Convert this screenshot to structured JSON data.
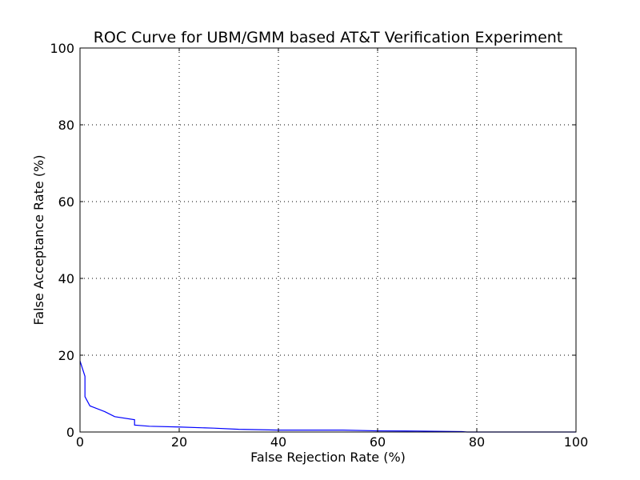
{
  "chart_data": {
    "type": "line",
    "title": "ROC Curve for UBM/GMM based AT&T Verification Experiment",
    "xlabel": "False Rejection Rate (%)",
    "ylabel": "False Acceptance Rate (%)",
    "xlim": [
      0,
      100
    ],
    "ylim": [
      0,
      100
    ],
    "xticks": [
      "0",
      "20",
      "40",
      "60",
      "80",
      "100"
    ],
    "yticks": [
      "0",
      "20",
      "40",
      "60",
      "80",
      "100"
    ],
    "grid": true,
    "series": [
      {
        "color": "#0000ff",
        "x": [
          0,
          1,
          1,
          2,
          5,
          7,
          11,
          11,
          14,
          20,
          27,
          32,
          40,
          53,
          60,
          68,
          77,
          78,
          85,
          100
        ],
        "y": [
          18.5,
          14.5,
          9.2,
          6.8,
          5.3,
          4.0,
          3.2,
          1.8,
          1.5,
          1.3,
          1.0,
          0.7,
          0.5,
          0.5,
          0.3,
          0.25,
          0.1,
          0.0,
          0.0,
          0.0
        ]
      }
    ]
  }
}
